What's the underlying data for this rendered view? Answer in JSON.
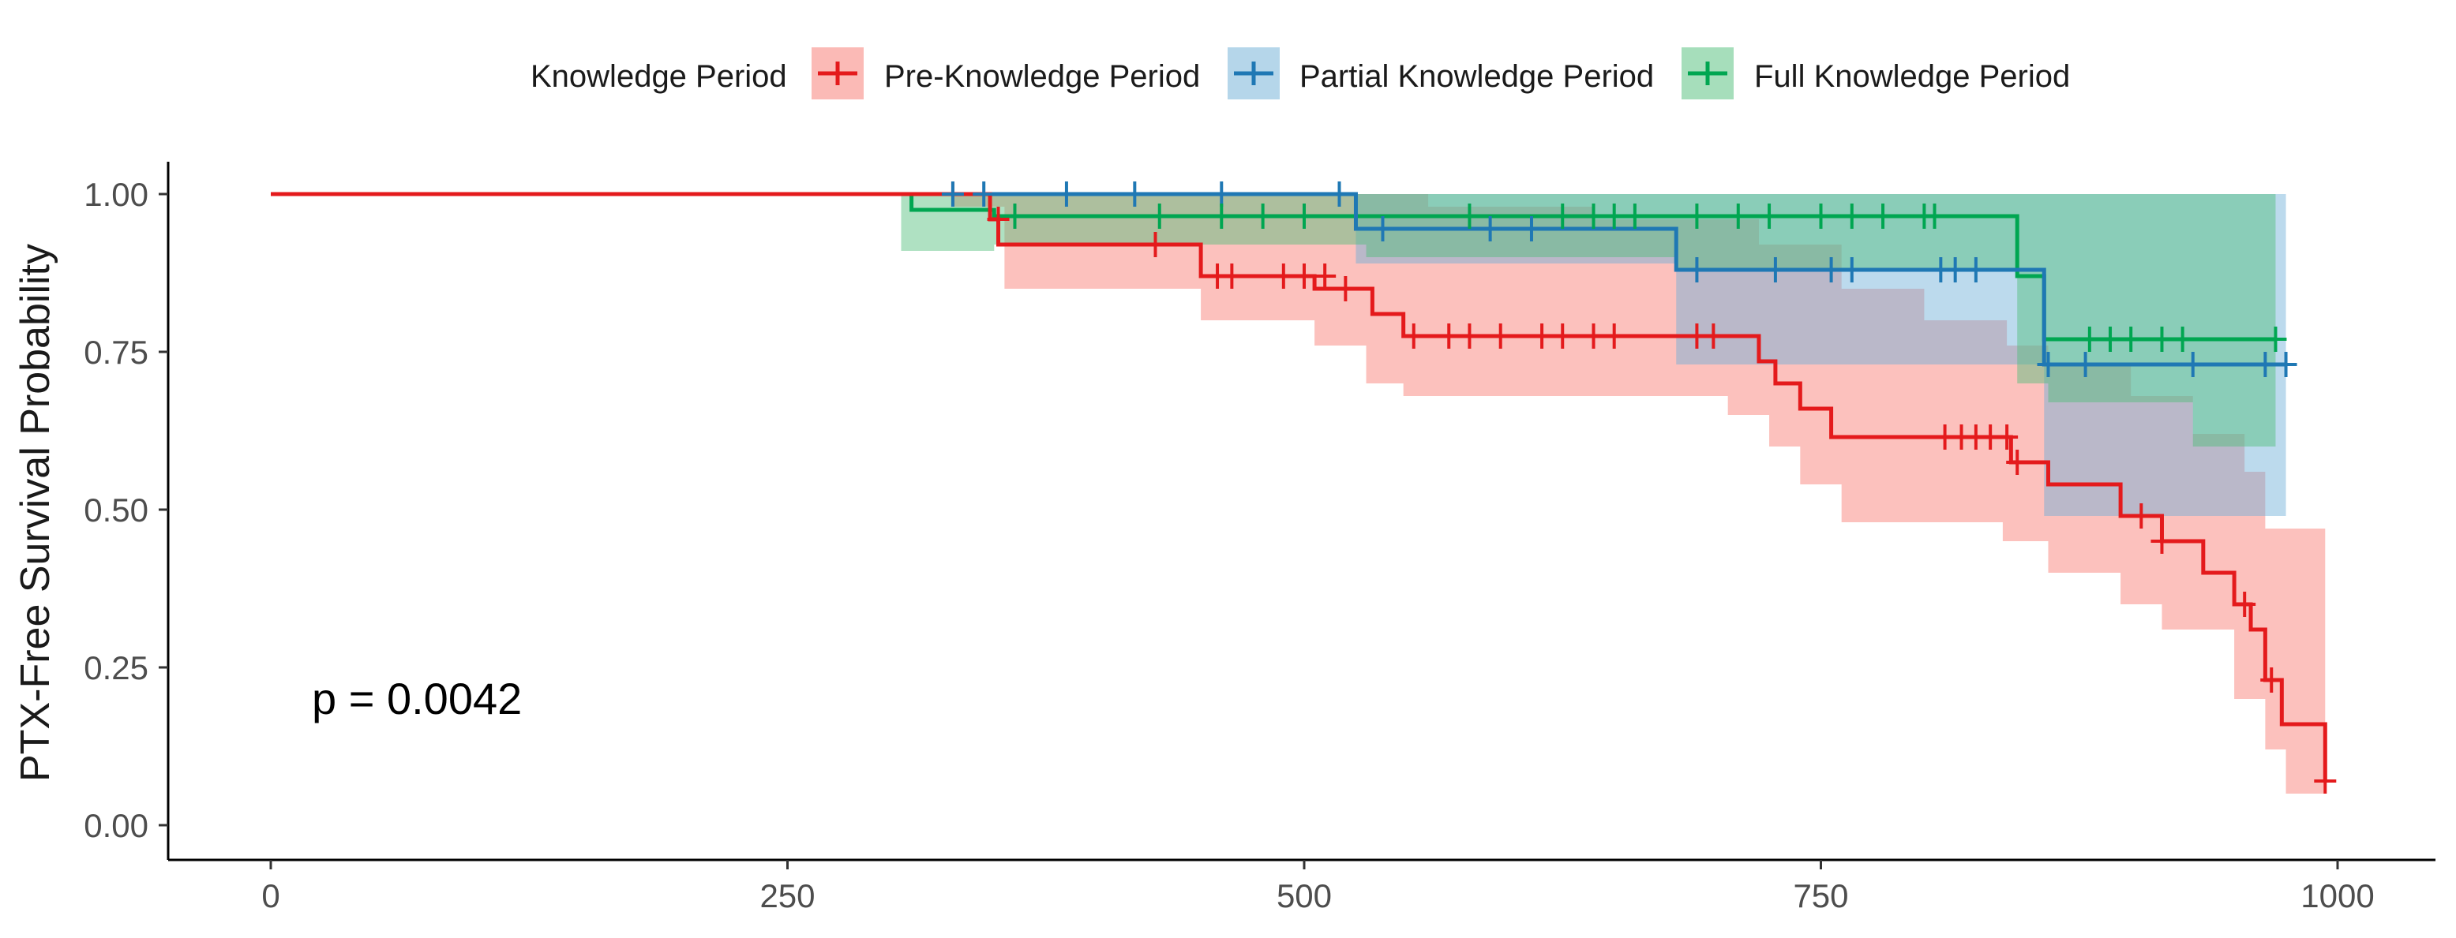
{
  "chart_data": {
    "type": "line",
    "title": "",
    "xlabel": "",
    "ylabel": "PTX-Free Survival Probability",
    "xlim": [
      -20,
      1020
    ],
    "ylim": [
      -0.05,
      1.05
    ],
    "x_ticks": [
      0,
      250,
      500,
      750,
      1000
    ],
    "y_ticks": [
      0.0,
      0.25,
      0.5,
      0.75,
      1.0
    ],
    "x_tick_labels": [
      "0",
      "250",
      "500",
      "750",
      "1000"
    ],
    "y_tick_labels": [
      "0.00",
      "0.25",
      "0.50",
      "0.75",
      "1.00"
    ],
    "grid": false,
    "legend": {
      "title": "Knowledge Period",
      "position": "top"
    },
    "annotation": "p = 0.0042",
    "series": [
      {
        "name": "Pre-Knowledge Period",
        "color": "#e41a1c",
        "fill": "#f8766d",
        "steps": [
          [
            0,
            1.0
          ],
          [
            330,
            1.0
          ],
          [
            348,
            0.96
          ],
          [
            352,
            0.92
          ],
          [
            450,
            0.87
          ],
          [
            505,
            0.85
          ],
          [
            533,
            0.81
          ],
          [
            548,
            0.775
          ],
          [
            705,
            0.775
          ],
          [
            720,
            0.735
          ],
          [
            728,
            0.7
          ],
          [
            740,
            0.66
          ],
          [
            755,
            0.615
          ],
          [
            835,
            0.615
          ],
          [
            842,
            0.575
          ],
          [
            860,
            0.54
          ],
          [
            895,
            0.49
          ],
          [
            915,
            0.45
          ],
          [
            935,
            0.4
          ],
          [
            950,
            0.35
          ],
          [
            958,
            0.31
          ],
          [
            965,
            0.23
          ],
          [
            973,
            0.16
          ],
          [
            994,
            0.07
          ]
        ],
        "ci_upper": [
          [
            330,
            1.0
          ],
          [
            560,
            0.98
          ],
          [
            640,
            0.96
          ],
          [
            720,
            0.92
          ],
          [
            760,
            0.85
          ],
          [
            800,
            0.8
          ],
          [
            840,
            0.76
          ],
          [
            860,
            0.73
          ],
          [
            900,
            0.68
          ],
          [
            930,
            0.62
          ],
          [
            955,
            0.56
          ],
          [
            965,
            0.47
          ],
          [
            994,
            0.47
          ]
        ],
        "ci_lower": [
          [
            330,
            0.98
          ],
          [
            355,
            0.85
          ],
          [
            450,
            0.8
          ],
          [
            505,
            0.76
          ],
          [
            530,
            0.7
          ],
          [
            548,
            0.68
          ],
          [
            705,
            0.65
          ],
          [
            725,
            0.6
          ],
          [
            740,
            0.54
          ],
          [
            760,
            0.48
          ],
          [
            838,
            0.45
          ],
          [
            860,
            0.4
          ],
          [
            895,
            0.35
          ],
          [
            915,
            0.31
          ],
          [
            950,
            0.2
          ],
          [
            965,
            0.12
          ],
          [
            975,
            0.05
          ],
          [
            994,
            0.05
          ]
        ],
        "censor_x": [
          330,
          352,
          428,
          458,
          465,
          490,
          500,
          510,
          520,
          553,
          570,
          580,
          595,
          615,
          625,
          640,
          650,
          690,
          698,
          810,
          818,
          825,
          832,
          840,
          845,
          905,
          915,
          955,
          968,
          994
        ],
        "censor_y": [
          1.0,
          0.96,
          0.92,
          0.87,
          0.87,
          0.87,
          0.87,
          0.87,
          0.85,
          0.775,
          0.775,
          0.775,
          0.775,
          0.775,
          0.775,
          0.775,
          0.775,
          0.775,
          0.775,
          0.615,
          0.615,
          0.615,
          0.615,
          0.615,
          0.575,
          0.49,
          0.45,
          0.35,
          0.23,
          0.07
        ]
      },
      {
        "name": "Partial Knowledge Period",
        "color": "#1f78b4",
        "fill": "#6baed6",
        "steps": [
          [
            0,
            1.0
          ],
          [
            340,
            1.0
          ],
          [
            525,
            0.945
          ],
          [
            680,
            0.88
          ],
          [
            858,
            0.73
          ],
          [
            975,
            0.73
          ]
        ],
        "ci_upper": [
          [
            340,
            1.0
          ],
          [
            975,
            1.0
          ]
        ],
        "ci_lower": [
          [
            340,
            1.0
          ],
          [
            525,
            0.89
          ],
          [
            680,
            0.73
          ],
          [
            858,
            0.49
          ],
          [
            975,
            0.49
          ]
        ],
        "censor_x": [
          330,
          345,
          385,
          418,
          460,
          517,
          538,
          590,
          610,
          690,
          728,
          755,
          765,
          808,
          815,
          825,
          860,
          878,
          930,
          965,
          975
        ],
        "censor_y": [
          1.0,
          1.0,
          1.0,
          1.0,
          1.0,
          1.0,
          0.945,
          0.945,
          0.945,
          0.88,
          0.88,
          0.88,
          0.88,
          0.88,
          0.88,
          0.88,
          0.73,
          0.73,
          0.73,
          0.73,
          0.73
        ]
      },
      {
        "name": "Full Knowledge Period",
        "color": "#00a651",
        "fill": "#4dbd78",
        "steps": [
          [
            0,
            1.0
          ],
          [
            305,
            1.0
          ],
          [
            310,
            0.975
          ],
          [
            345,
            0.975
          ],
          [
            350,
            0.965
          ],
          [
            838,
            0.965
          ],
          [
            845,
            0.87
          ],
          [
            858,
            0.77
          ],
          [
            970,
            0.77
          ]
        ],
        "ci_upper": [
          [
            305,
            1.0
          ],
          [
            970,
            1.0
          ]
        ],
        "ci_lower": [
          [
            305,
            0.91
          ],
          [
            350,
            0.92
          ],
          [
            530,
            0.9
          ],
          [
            680,
            0.88
          ],
          [
            845,
            0.7
          ],
          [
            860,
            0.67
          ],
          [
            900,
            0.67
          ],
          [
            930,
            0.6
          ],
          [
            970,
            0.57
          ]
        ],
        "censor_x": [
          360,
          430,
          460,
          480,
          500,
          580,
          625,
          640,
          650,
          660,
          690,
          710,
          725,
          750,
          765,
          780,
          800,
          805,
          880,
          890,
          900,
          915,
          925,
          970
        ],
        "censor_y": [
          0.965,
          0.965,
          0.965,
          0.965,
          0.965,
          0.965,
          0.965,
          0.965,
          0.965,
          0.965,
          0.965,
          0.965,
          0.965,
          0.965,
          0.965,
          0.965,
          0.965,
          0.965,
          0.77,
          0.77,
          0.77,
          0.77,
          0.77,
          0.77
        ]
      }
    ]
  }
}
